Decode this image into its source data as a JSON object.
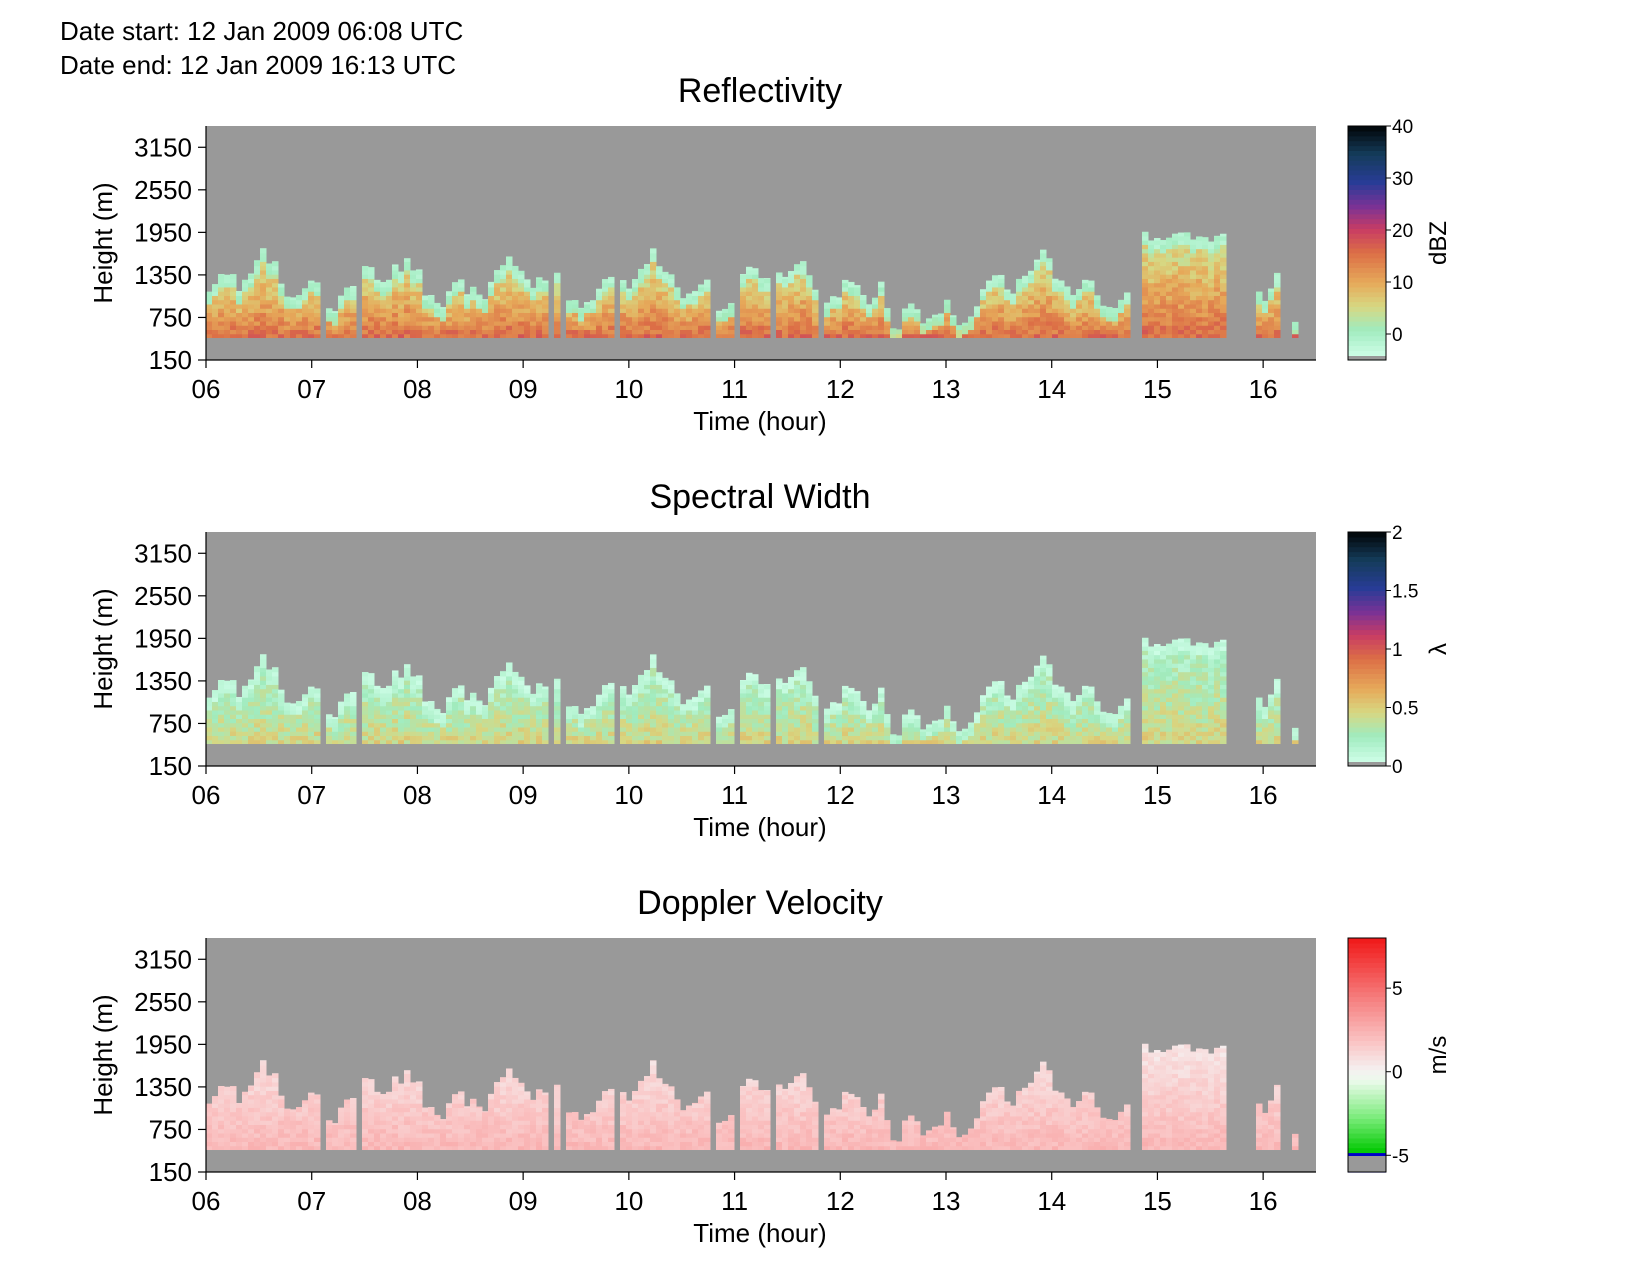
{
  "header": {
    "start_label": "Date start:",
    "start_value": "12 Jan 2009 06:08 UTC",
    "end_label": "Date end:",
    "end_value": "12 Jan 2009 16:13 UTC"
  },
  "chart_data": [
    {
      "type": "heatmap",
      "title": "Reflectivity",
      "xlabel": "Time (hour)",
      "ylabel": "Height (m)",
      "xticks": [
        "06",
        "07",
        "08",
        "09",
        "10",
        "11",
        "12",
        "13",
        "14",
        "15",
        "16"
      ],
      "yticks": [
        "150",
        "750",
        "1350",
        "1950",
        "2550",
        "3150"
      ],
      "xlim": [
        6,
        16.5
      ],
      "ylim": [
        150,
        3450
      ],
      "colorbar": {
        "unit": "dBZ",
        "ticks": [
          "0",
          "10",
          "20",
          "30",
          "40"
        ],
        "range": [
          -5,
          40
        ]
      },
      "palette": "reflectivity",
      "estimated_intensity": 0.45,
      "no_data_color": "#999999"
    },
    {
      "type": "heatmap",
      "title": "Spectral Width",
      "xlabel": "Time (hour)",
      "ylabel": "Height (m)",
      "xticks": [
        "06",
        "07",
        "08",
        "09",
        "10",
        "11",
        "12",
        "13",
        "14",
        "15",
        "16"
      ],
      "yticks": [
        "150",
        "750",
        "1350",
        "1950",
        "2550",
        "3150"
      ],
      "xlim": [
        6,
        16.5
      ],
      "ylim": [
        150,
        3450
      ],
      "colorbar": {
        "unit": "λ",
        "ticks": [
          "0",
          "0.5",
          "1",
          "1.5",
          "2"
        ],
        "range": [
          0,
          2
        ]
      },
      "palette": "reflectivity",
      "estimated_intensity": 0.22,
      "no_data_color": "#999999"
    },
    {
      "type": "heatmap",
      "title": "Doppler Velocity",
      "xlabel": "Time (hour)",
      "ylabel": "Height (m)",
      "xticks": [
        "06",
        "07",
        "08",
        "09",
        "10",
        "11",
        "12",
        "13",
        "14",
        "15",
        "16"
      ],
      "yticks": [
        "150",
        "750",
        "1350",
        "1950",
        "2550",
        "3150"
      ],
      "xlim": [
        6,
        16.5
      ],
      "ylim": [
        150,
        3450
      ],
      "colorbar": {
        "unit": "m/s",
        "ticks": [
          "-5",
          "0",
          "5"
        ],
        "range": [
          -6,
          8
        ]
      },
      "palette": "velocity",
      "estimated_intensity": 0.55,
      "no_data_color": "#999999"
    }
  ]
}
